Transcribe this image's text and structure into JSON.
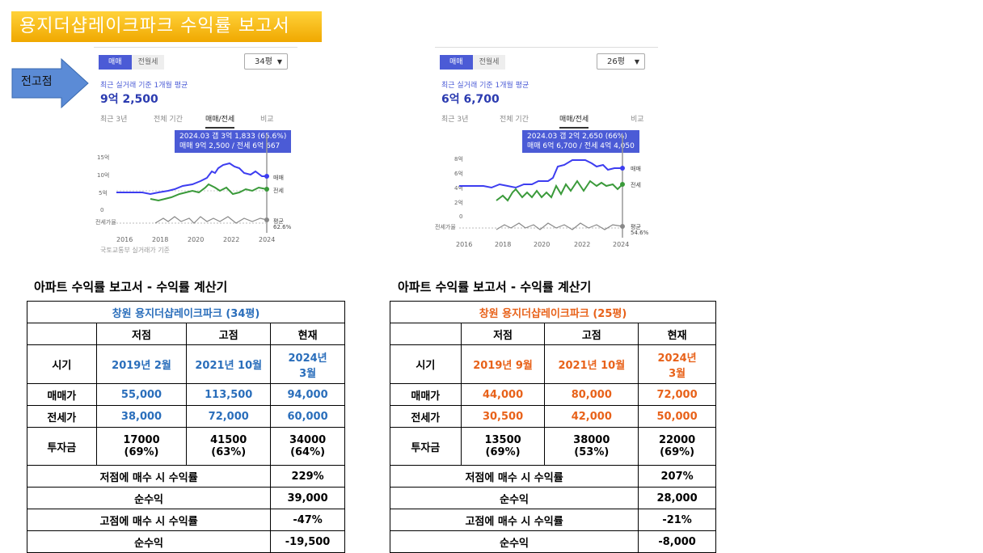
{
  "banner": {
    "title": "용지더샵레이크파크 수익률 보고서"
  },
  "arrow": {
    "label": "전고점"
  },
  "panels": [
    {
      "tabs_top": {
        "sale": "매매",
        "rent": "전월세"
      },
      "size": "34평",
      "avg_label": "최근 실거래 기준 1개월 평균",
      "avg_price": "9억 2,500",
      "tabs": [
        "최근 3년",
        "전체 기간",
        "매매/전세",
        "비교"
      ],
      "tooltip": {
        "line1": "2024.03  갭 3억 1,833 (65.6%)",
        "line2": "매매 9억 2,500 / 전세 6억 667"
      },
      "y_ticks": [
        "15억",
        "10억",
        "5억",
        "0"
      ],
      "x_ticks": [
        "2016",
        "2018",
        "2020",
        "2022",
        "2024"
      ],
      "legend": {
        "sale": "매매",
        "rent": "전세",
        "ratio_label": "전세가율",
        "avg": "평균",
        "avg_val": "62.6%"
      },
      "source": "국토교통부 실거래가 기준"
    },
    {
      "tabs_top": {
        "sale": "매매",
        "rent": "전월세"
      },
      "size": "26평",
      "avg_label": "최근 실거래 기준 1개월 평균",
      "avg_price": "6억 6,700",
      "tabs": [
        "최근 3년",
        "전체 기간",
        "매매/전세",
        "비교"
      ],
      "tooltip": {
        "line1": "2024.03  갭 2억 2,650 (66%)",
        "line2": "매매 6억 6,700 / 전세 4억 4,050"
      },
      "y_ticks": [
        "8억",
        "6억",
        "4억",
        "2억",
        "0"
      ],
      "x_ticks": [
        "2016",
        "2018",
        "2020",
        "2022",
        "2024"
      ],
      "legend": {
        "sale": "매매",
        "rent": "전세",
        "ratio_label": "전세가율",
        "avg": "평균",
        "avg_val": "54.6%"
      }
    }
  ],
  "reports": [
    {
      "heading": "아파트 수익률 보고서 - 수익률 계산기",
      "title": "창원 용지더샵레이크파크 (34평)",
      "cols": [
        "저점",
        "고점",
        "현재"
      ],
      "rows": [
        {
          "label": "시기",
          "vals": [
            "2019년 2월",
            "2021년 10월",
            "2024년\n3월"
          ]
        },
        {
          "label": "매매가",
          "vals": [
            "55,000",
            "113,500",
            "94,000"
          ]
        },
        {
          "label": "전세가",
          "vals": [
            "38,000",
            "72,000",
            "60,000"
          ]
        },
        {
          "label": "투자금",
          "vals": [
            "17000\n(69%)",
            "41500\n(63%)",
            "34000\n(64%)"
          ]
        }
      ],
      "summary": [
        {
          "label": "저점에 매수 시 수익률",
          "value": "229%"
        },
        {
          "label": "순수익",
          "value": "39,000"
        },
        {
          "label": "고점에 매수 시 수익률",
          "value": "-47%"
        },
        {
          "label": "순수익",
          "value": "-19,500"
        }
      ]
    },
    {
      "heading": "아파트 수익률 보고서 - 수익률 계산기",
      "title": "창원 용지더샵레이크파크 (25평)",
      "cols": [
        "저점",
        "고점",
        "현재"
      ],
      "rows": [
        {
          "label": "시기",
          "vals": [
            "2019년 9월",
            "2021년 10월",
            "2024년\n3월"
          ]
        },
        {
          "label": "매매가",
          "vals": [
            "44,000",
            "80,000",
            "72,000"
          ]
        },
        {
          "label": "전세가",
          "vals": [
            "30,500",
            "42,000",
            "50,000"
          ]
        },
        {
          "label": "투자금",
          "vals": [
            "13500\n(69%)",
            "38000\n(53%)",
            "22000\n(69%)"
          ]
        }
      ],
      "summary": [
        {
          "label": "저점에 매수 시 수익률",
          "value": "207%"
        },
        {
          "label": "순수익",
          "value": "28,000"
        },
        {
          "label": "고점에 매수 시 수익률",
          "value": "-21%"
        },
        {
          "label": "순수익",
          "value": "-8,000"
        }
      ]
    }
  ],
  "colors": {
    "banner": "#f5b800",
    "blue": "#2a6ebb",
    "orange": "#e8621a",
    "sale_line": "#3d3df0",
    "rent_line": "#3a9a3a"
  }
}
